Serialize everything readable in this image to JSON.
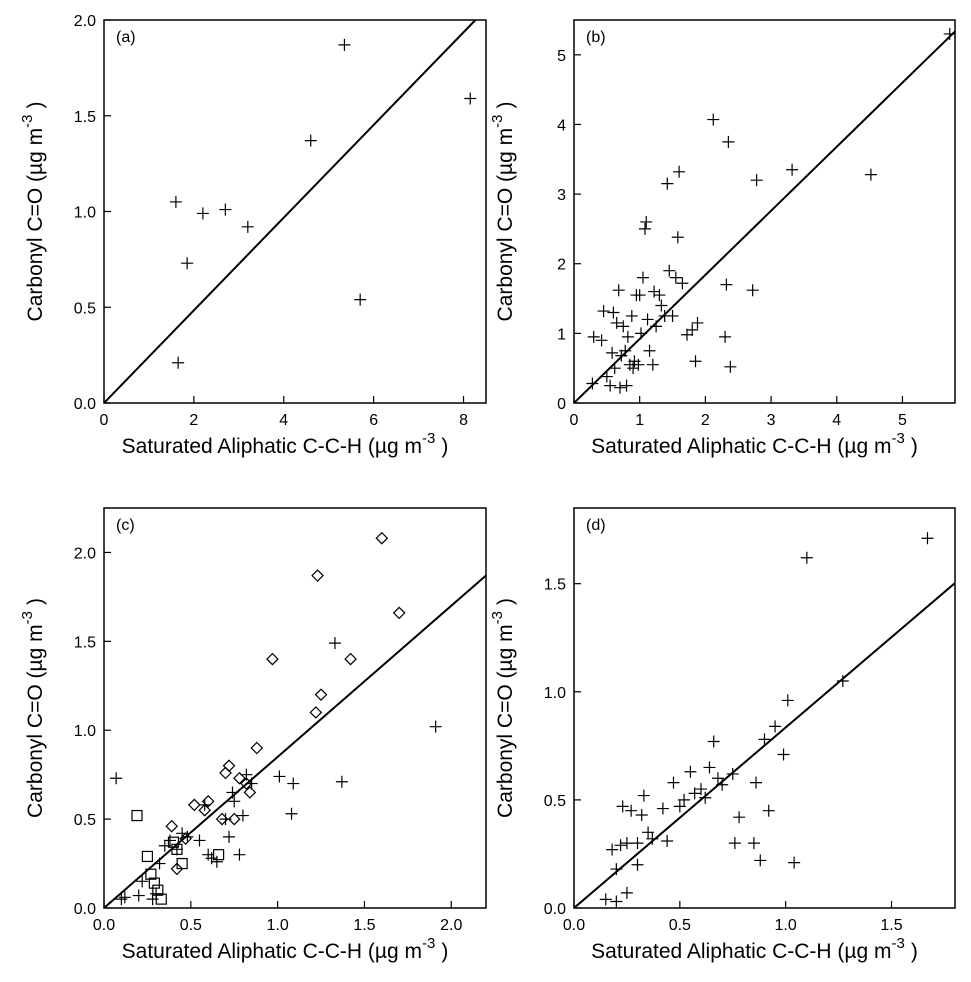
{
  "chart_data": [
    {
      "panel_label": "(a)",
      "type": "scatter",
      "xlabel": "Saturated Aliphatic C-C-H (µg m",
      "ylabel": "Carbonyl C=O (µg m",
      "unit_exponent": "-3",
      "unit_close": ")",
      "xlim": [
        0,
        8.5
      ],
      "ylim": [
        0,
        2.0
      ],
      "xticks": [
        0,
        2,
        4,
        6,
        8
      ],
      "xtick_labels": [
        "0",
        "2",
        "4",
        "6",
        "8"
      ],
      "yticks": [
        0,
        0.5,
        1.0,
        1.5,
        2.0
      ],
      "ytick_labels": [
        "0.0",
        "0.5",
        "1.0",
        "1.5",
        "2.0"
      ],
      "line": {
        "slope": 0.242
      },
      "series": [
        {
          "marker": "plus",
          "points": [
            [
              1.6,
              1.05
            ],
            [
              1.85,
              0.73
            ],
            [
              2.2,
              0.99
            ],
            [
              2.7,
              1.01
            ],
            [
              3.2,
              0.92
            ],
            [
              4.6,
              1.37
            ],
            [
              5.35,
              1.87
            ],
            [
              5.7,
              0.54
            ],
            [
              8.15,
              1.59
            ],
            [
              1.65,
              0.21
            ]
          ]
        }
      ]
    },
    {
      "panel_label": "(b)",
      "type": "scatter",
      "xlabel": "Saturated Aliphatic C-C-H (µg m",
      "ylabel": "Carbonyl C=O (µg m",
      "unit_exponent": "-3",
      "unit_close": ")",
      "xlim": [
        0,
        5.8
      ],
      "ylim": [
        0,
        5.5
      ],
      "xticks": [
        0,
        1,
        2,
        3,
        4,
        5
      ],
      "xtick_labels": [
        "0",
        "1",
        "2",
        "3",
        "4",
        "5"
      ],
      "yticks": [
        0,
        1,
        2,
        3,
        4,
        5
      ],
      "ytick_labels": [
        "0",
        "1",
        "2",
        "3",
        "4",
        "5"
      ],
      "line": {
        "slope": 0.92
      },
      "series": [
        {
          "marker": "plus",
          "points": [
            [
              0.28,
              0.28
            ],
            [
              0.3,
              0.95
            ],
            [
              0.42,
              0.9
            ],
            [
              0.45,
              1.32
            ],
            [
              0.5,
              0.38
            ],
            [
              0.55,
              0.25
            ],
            [
              0.58,
              0.72
            ],
            [
              0.6,
              1.3
            ],
            [
              0.62,
              0.5
            ],
            [
              0.65,
              1.15
            ],
            [
              0.68,
              1.62
            ],
            [
              0.7,
              0.22
            ],
            [
              0.72,
              0.68
            ],
            [
              0.75,
              1.1
            ],
            [
              0.78,
              0.75
            ],
            [
              0.8,
              0.25
            ],
            [
              0.82,
              0.95
            ],
            [
              0.85,
              0.55
            ],
            [
              0.88,
              1.25
            ],
            [
              0.9,
              0.5
            ],
            [
              0.92,
              0.6
            ],
            [
              0.95,
              1.55
            ],
            [
              0.98,
              0.55
            ],
            [
              1.0,
              1.55
            ],
            [
              1.02,
              1.0
            ],
            [
              1.05,
              1.8
            ],
            [
              1.08,
              2.5
            ],
            [
              1.1,
              2.6
            ],
            [
              1.12,
              1.2
            ],
            [
              1.15,
              0.75
            ],
            [
              1.2,
              0.55
            ],
            [
              1.22,
              1.6
            ],
            [
              1.25,
              1.1
            ],
            [
              1.3,
              1.55
            ],
            [
              1.33,
              1.4
            ],
            [
              1.38,
              1.25
            ],
            [
              1.42,
              3.15
            ],
            [
              1.45,
              1.9
            ],
            [
              1.5,
              1.25
            ],
            [
              1.55,
              1.8
            ],
            [
              1.58,
              2.38
            ],
            [
              1.6,
              3.32
            ],
            [
              1.65,
              1.72
            ],
            [
              1.72,
              0.98
            ],
            [
              1.8,
              1.05
            ],
            [
              1.85,
              0.6
            ],
            [
              1.88,
              1.15
            ],
            [
              2.12,
              4.07
            ],
            [
              2.3,
              0.95
            ],
            [
              2.32,
              1.7
            ],
            [
              2.35,
              3.75
            ],
            [
              2.38,
              0.52
            ],
            [
              2.72,
              1.62
            ],
            [
              2.78,
              3.2
            ],
            [
              3.32,
              3.35
            ],
            [
              4.52,
              3.28
            ],
            [
              5.72,
              5.3
            ]
          ]
        }
      ]
    },
    {
      "panel_label": "(c)",
      "type": "scatter",
      "xlabel": "Saturated Aliphatic C-C-H (µg m",
      "ylabel": "Carbonyl C=O (µg m",
      "unit_exponent": "-3",
      "unit_close": ")",
      "xlim": [
        0,
        2.2
      ],
      "ylim": [
        0,
        2.25
      ],
      "xticks": [
        0,
        0.5,
        1.0,
        1.5,
        2.0
      ],
      "xtick_labels": [
        "0.0",
        "0.5",
        "1.0",
        "1.5",
        "2.0"
      ],
      "yticks": [
        0,
        0.5,
        1.0,
        1.5,
        2.0
      ],
      "ytick_labels": [
        "0.0",
        "0.5",
        "1.0",
        "1.5",
        "2.0"
      ],
      "line": {
        "slope": 0.85
      },
      "series": [
        {
          "marker": "plus",
          "points": [
            [
              0.07,
              0.73
            ],
            [
              0.1,
              0.05
            ],
            [
              0.12,
              0.06
            ],
            [
              0.2,
              0.07
            ],
            [
              0.22,
              0.15
            ],
            [
              0.28,
              0.05
            ],
            [
              0.3,
              0.08
            ],
            [
              0.32,
              0.25
            ],
            [
              0.35,
              0.35
            ],
            [
              0.38,
              0.38
            ],
            [
              0.42,
              0.33
            ],
            [
              0.45,
              0.42
            ],
            [
              0.48,
              0.4
            ],
            [
              0.55,
              0.38
            ],
            [
              0.58,
              0.58
            ],
            [
              0.6,
              0.3
            ],
            [
              0.62,
              0.28
            ],
            [
              0.65,
              0.26
            ],
            [
              0.7,
              0.5
            ],
            [
              0.72,
              0.4
            ],
            [
              0.74,
              0.65
            ],
            [
              0.75,
              0.6
            ],
            [
              0.78,
              0.3
            ],
            [
              0.8,
              0.52
            ],
            [
              0.82,
              0.75
            ],
            [
              0.85,
              0.7
            ],
            [
              1.01,
              0.74
            ],
            [
              1.08,
              0.53
            ],
            [
              1.09,
              0.7
            ],
            [
              1.33,
              1.49
            ],
            [
              1.37,
              0.71
            ],
            [
              1.91,
              1.02
            ]
          ]
        },
        {
          "marker": "diamond",
          "points": [
            [
              0.39,
              0.46
            ],
            [
              0.42,
              0.22
            ],
            [
              0.47,
              0.39
            ],
            [
              0.52,
              0.58
            ],
            [
              0.58,
              0.55
            ],
            [
              0.6,
              0.6
            ],
            [
              0.68,
              0.5
            ],
            [
              0.7,
              0.76
            ],
            [
              0.72,
              0.8
            ],
            [
              0.75,
              0.5
            ],
            [
              0.78,
              0.73
            ],
            [
              0.82,
              0.7
            ],
            [
              0.84,
              0.65
            ],
            [
              0.88,
              0.9
            ],
            [
              0.97,
              1.4
            ],
            [
              1.22,
              1.1
            ],
            [
              1.23,
              1.87
            ],
            [
              1.25,
              1.2
            ],
            [
              1.42,
              1.4
            ],
            [
              1.6,
              2.08
            ],
            [
              1.7,
              1.66
            ]
          ]
        },
        {
          "marker": "square",
          "points": [
            [
              0.19,
              0.52
            ],
            [
              0.25,
              0.29
            ],
            [
              0.27,
              0.19
            ],
            [
              0.29,
              0.14
            ],
            [
              0.31,
              0.1
            ],
            [
              0.33,
              0.05
            ],
            [
              0.42,
              0.33
            ],
            [
              0.45,
              0.25
            ],
            [
              0.66,
              0.3
            ],
            [
              0.4,
              0.37
            ]
          ]
        }
      ]
    },
    {
      "panel_label": "(d)",
      "type": "scatter",
      "xlabel": "Saturated Aliphatic C-C-H (µg m",
      "ylabel": "Carbonyl C=O (µg m",
      "unit_exponent": "-3",
      "unit_close": ")",
      "xlim": [
        0,
        1.8
      ],
      "ylim": [
        0,
        1.85
      ],
      "xticks": [
        0,
        0.5,
        1.0,
        1.5
      ],
      "xtick_labels": [
        "0.0",
        "0.5",
        "1.0",
        "1.5"
      ],
      "yticks": [
        0,
        0.5,
        1.0,
        1.5
      ],
      "ytick_labels": [
        "0.0",
        "0.5",
        "1.0",
        "1.5"
      ],
      "line": {
        "slope": 0.835
      },
      "series": [
        {
          "marker": "plus",
          "points": [
            [
              0.15,
              0.04
            ],
            [
              0.18,
              0.27
            ],
            [
              0.2,
              0.03
            ],
            [
              0.2,
              0.18
            ],
            [
              0.22,
              0.29
            ],
            [
              0.23,
              0.47
            ],
            [
              0.25,
              0.07
            ],
            [
              0.25,
              0.3
            ],
            [
              0.27,
              0.45
            ],
            [
              0.3,
              0.2
            ],
            [
              0.3,
              0.3
            ],
            [
              0.32,
              0.43
            ],
            [
              0.33,
              0.52
            ],
            [
              0.35,
              0.35
            ],
            [
              0.37,
              0.32
            ],
            [
              0.42,
              0.46
            ],
            [
              0.44,
              0.31
            ],
            [
              0.47,
              0.58
            ],
            [
              0.5,
              0.47
            ],
            [
              0.52,
              0.5
            ],
            [
              0.55,
              0.63
            ],
            [
              0.57,
              0.53
            ],
            [
              0.6,
              0.55
            ],
            [
              0.62,
              0.51
            ],
            [
              0.64,
              0.65
            ],
            [
              0.66,
              0.77
            ],
            [
              0.68,
              0.6
            ],
            [
              0.7,
              0.57
            ],
            [
              0.75,
              0.62
            ],
            [
              0.76,
              0.3
            ],
            [
              0.78,
              0.42
            ],
            [
              0.85,
              0.3
            ],
            [
              0.86,
              0.58
            ],
            [
              0.88,
              0.22
            ],
            [
              0.9,
              0.78
            ],
            [
              0.92,
              0.45
            ],
            [
              0.95,
              0.84
            ],
            [
              0.99,
              0.71
            ],
            [
              1.01,
              0.96
            ],
            [
              1.04,
              0.21
            ],
            [
              1.1,
              1.62
            ],
            [
              1.27,
              1.05
            ],
            [
              1.67,
              1.71
            ]
          ]
        }
      ]
    }
  ]
}
